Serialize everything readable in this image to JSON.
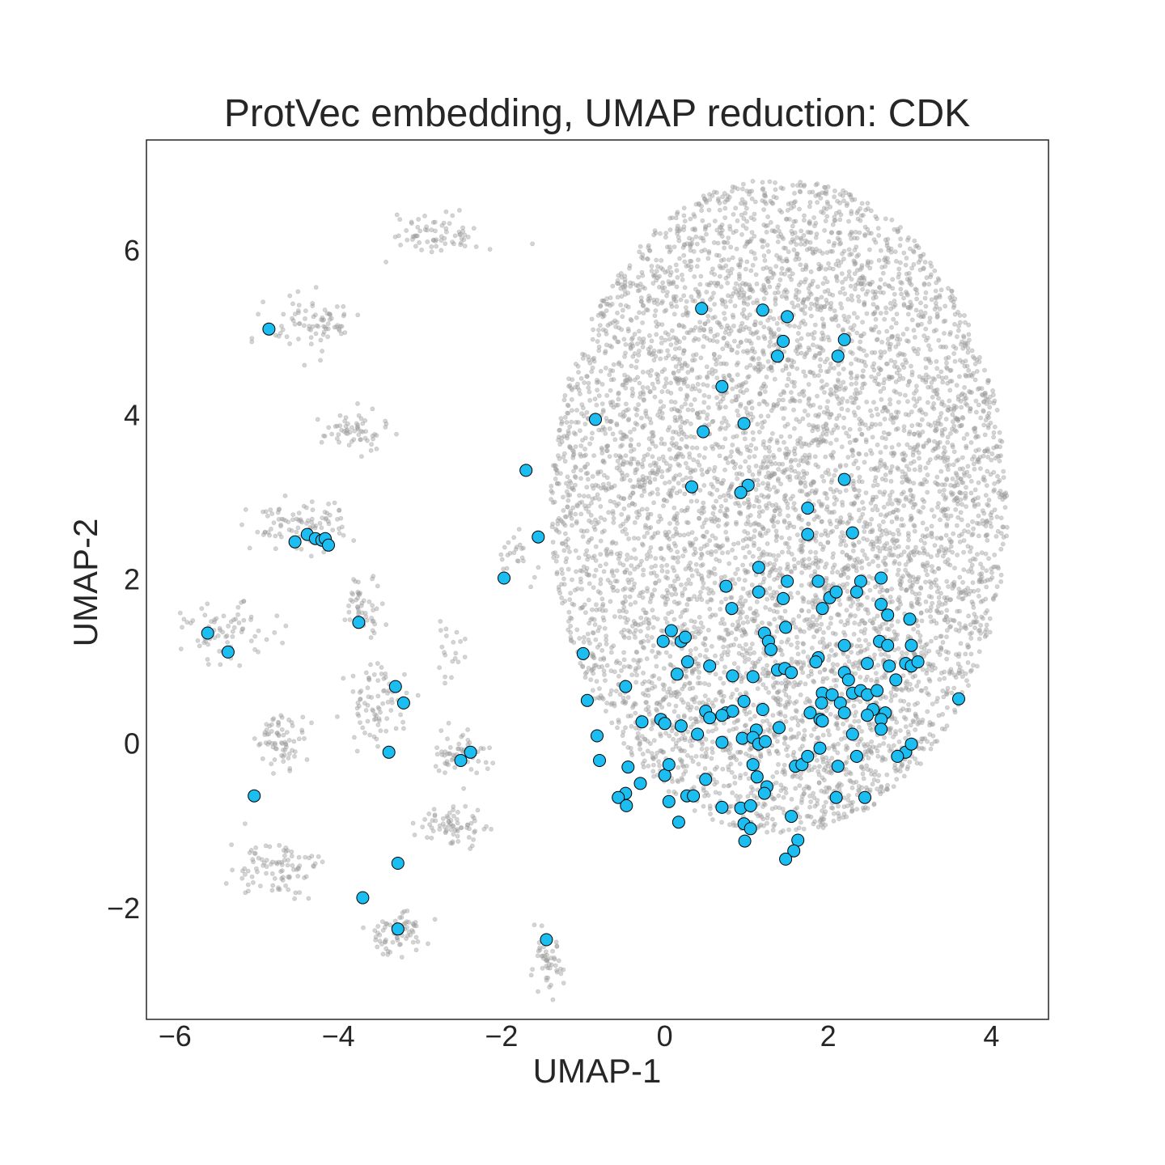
{
  "chart_data": {
    "type": "scatter",
    "title": "ProtVec embedding, UMAP reduction: CDK",
    "xlabel": "UMAP-1",
    "ylabel": "UMAP-2",
    "xlim": [
      -6.35,
      4.7
    ],
    "ylim": [
      -3.35,
      7.35
    ],
    "xticks": [
      -6,
      -4,
      -2,
      0,
      2,
      4
    ],
    "xtick_labels": [
      "−6",
      "−4",
      "−2",
      "0",
      "2",
      "4"
    ],
    "yticks": [
      -2,
      0,
      2,
      4,
      6
    ],
    "ytick_labels": [
      "−2",
      "0",
      "2",
      "4",
      "6"
    ],
    "grid": false,
    "background": {
      "color": "#a0a0a0",
      "description": "dense grey cloud of ~8000 background embeddings (sub-clusters) — positions approximated",
      "clusters": [
        {
          "cx": 1.4,
          "cy": 2.9,
          "rx": 2.8,
          "ry": 4.0,
          "n": 6500
        },
        {
          "cx": -2.8,
          "cy": 6.2,
          "rx": 0.55,
          "ry": 0.25,
          "n": 70
        },
        {
          "cx": -4.3,
          "cy": 5.1,
          "rx": 0.55,
          "ry": 0.35,
          "n": 80
        },
        {
          "cx": -3.8,
          "cy": 3.8,
          "rx": 0.4,
          "ry": 0.25,
          "n": 60
        },
        {
          "cx": -4.5,
          "cy": 2.65,
          "rx": 0.6,
          "ry": 0.3,
          "n": 90
        },
        {
          "cx": -5.35,
          "cy": 1.35,
          "rx": 0.55,
          "ry": 0.35,
          "n": 70
        },
        {
          "cx": -3.7,
          "cy": 1.7,
          "rx": 0.25,
          "ry": 0.35,
          "n": 50
        },
        {
          "cx": -3.5,
          "cy": 0.5,
          "rx": 0.4,
          "ry": 0.5,
          "n": 80
        },
        {
          "cx": -4.7,
          "cy": 0.05,
          "rx": 0.3,
          "ry": 0.3,
          "n": 70
        },
        {
          "cx": -2.5,
          "cy": -0.1,
          "rx": 0.35,
          "ry": 0.3,
          "n": 60
        },
        {
          "cx": -2.6,
          "cy": -1.0,
          "rx": 0.4,
          "ry": 0.25,
          "n": 70
        },
        {
          "cx": -4.8,
          "cy": -1.5,
          "rx": 0.55,
          "ry": 0.35,
          "n": 90
        },
        {
          "cx": -3.3,
          "cy": -2.3,
          "rx": 0.4,
          "ry": 0.25,
          "n": 70
        },
        {
          "cx": -1.45,
          "cy": -2.7,
          "rx": 0.2,
          "ry": 0.35,
          "n": 50
        },
        {
          "cx": -2.65,
          "cy": 1.1,
          "rx": 0.2,
          "ry": 0.3,
          "n": 20
        },
        {
          "cx": -1.8,
          "cy": 2.3,
          "rx": 0.3,
          "ry": 0.3,
          "n": 25
        }
      ]
    },
    "series": [
      {
        "color": "#1cbdf0",
        "edge_color": "#000000",
        "points": [
          [
            -4.85,
            5.05
          ],
          [
            -1.7,
            3.33
          ],
          [
            -1.55,
            2.52
          ],
          [
            -1.97,
            2.02
          ],
          [
            -4.38,
            2.55
          ],
          [
            -4.53,
            2.46
          ],
          [
            -4.28,
            2.5
          ],
          [
            -4.2,
            2.48
          ],
          [
            -4.16,
            2.5
          ],
          [
            -4.12,
            2.42
          ],
          [
            -5.6,
            1.35
          ],
          [
            -5.35,
            1.12
          ],
          [
            -3.75,
            1.48
          ],
          [
            -3.3,
            0.7
          ],
          [
            -3.2,
            0.5
          ],
          [
            -3.38,
            -0.1
          ],
          [
            -2.38,
            -0.1
          ],
          [
            -2.5,
            -0.2
          ],
          [
            -5.03,
            -0.63
          ],
          [
            -3.27,
            -1.45
          ],
          [
            -3.7,
            -1.87
          ],
          [
            -3.27,
            -2.25
          ],
          [
            -1.45,
            -2.38
          ],
          [
            -0.85,
            3.95
          ],
          [
            0.45,
            5.3
          ],
          [
            1.2,
            5.28
          ],
          [
            1.5,
            5.2
          ],
          [
            2.2,
            4.92
          ],
          [
            1.45,
            4.9
          ],
          [
            1.38,
            4.72
          ],
          [
            2.12,
            4.72
          ],
          [
            0.7,
            4.35
          ],
          [
            0.97,
            3.9
          ],
          [
            0.47,
            3.8
          ],
          [
            1.02,
            3.15
          ],
          [
            0.33,
            3.13
          ],
          [
            0.93,
            3.06
          ],
          [
            2.2,
            3.22
          ],
          [
            1.75,
            2.87
          ],
          [
            2.3,
            2.57
          ],
          [
            1.75,
            2.55
          ],
          [
            1.15,
            2.15
          ],
          [
            0.75,
            1.92
          ],
          [
            1.15,
            1.85
          ],
          [
            1.5,
            1.98
          ],
          [
            1.88,
            1.98
          ],
          [
            2.4,
            1.98
          ],
          [
            2.65,
            2.02
          ],
          [
            0.82,
            1.65
          ],
          [
            1.45,
            1.77
          ],
          [
            1.93,
            1.65
          ],
          [
            2.02,
            1.78
          ],
          [
            2.1,
            1.85
          ],
          [
            2.35,
            1.85
          ],
          [
            2.65,
            1.7
          ],
          [
            2.73,
            1.57
          ],
          [
            3.0,
            1.52
          ],
          [
            0.08,
            1.38
          ],
          [
            0.2,
            1.25
          ],
          [
            0.25,
            1.3
          ],
          [
            1.22,
            1.35
          ],
          [
            1.48,
            1.42
          ],
          [
            1.27,
            1.25
          ],
          [
            1.3,
            1.15
          ],
          [
            -0.02,
            1.25
          ],
          [
            -1.0,
            1.1
          ],
          [
            2.2,
            1.2
          ],
          [
            2.63,
            1.25
          ],
          [
            2.73,
            1.2
          ],
          [
            3.02,
            1.2
          ],
          [
            1.88,
            1.05
          ],
          [
            1.85,
            1.0
          ],
          [
            0.28,
            1.0
          ],
          [
            0.55,
            0.95
          ],
          [
            0.15,
            0.85
          ],
          [
            0.83,
            0.83
          ],
          [
            1.08,
            0.82
          ],
          [
            1.38,
            0.9
          ],
          [
            1.47,
            0.92
          ],
          [
            1.55,
            0.87
          ],
          [
            2.2,
            0.87
          ],
          [
            2.48,
            0.98
          ],
          [
            2.75,
            0.95
          ],
          [
            2.95,
            0.98
          ],
          [
            3.02,
            0.95
          ],
          [
            3.1,
            1.0
          ],
          [
            2.25,
            0.78
          ],
          [
            2.83,
            0.78
          ],
          [
            -0.48,
            0.7
          ],
          [
            -0.95,
            0.53
          ],
          [
            0.97,
            0.52
          ],
          [
            1.2,
            0.42
          ],
          [
            1.93,
            0.62
          ],
          [
            2.05,
            0.6
          ],
          [
            2.3,
            0.62
          ],
          [
            2.4,
            0.65
          ],
          [
            2.48,
            0.6
          ],
          [
            2.6,
            0.65
          ],
          [
            2.15,
            0.5
          ],
          [
            1.92,
            0.5
          ],
          [
            3.6,
            0.55
          ],
          [
            0.75,
            0.38
          ],
          [
            0.83,
            0.4
          ],
          [
            0.5,
            0.4
          ],
          [
            0.55,
            0.32
          ],
          [
            0.7,
            0.35
          ],
          [
            1.78,
            0.38
          ],
          [
            1.9,
            0.3
          ],
          [
            1.93,
            0.28
          ],
          [
            2.2,
            0.38
          ],
          [
            2.55,
            0.42
          ],
          [
            2.48,
            0.35
          ],
          [
            2.7,
            0.38
          ],
          [
            2.65,
            0.3
          ],
          [
            -0.28,
            0.27
          ],
          [
            -0.05,
            0.3
          ],
          [
            0.0,
            0.25
          ],
          [
            0.2,
            0.22
          ],
          [
            0.4,
            0.12
          ],
          [
            1.12,
            0.17
          ],
          [
            1.4,
            0.2
          ],
          [
            2.65,
            0.18
          ],
          [
            2.3,
            0.12
          ],
          [
            -0.83,
            0.1
          ],
          [
            0.7,
            0.02
          ],
          [
            0.95,
            0.07
          ],
          [
            1.08,
            0.08
          ],
          [
            1.15,
            0.0
          ],
          [
            1.23,
            0.03
          ],
          [
            1.9,
            -0.05
          ],
          [
            2.95,
            -0.1
          ],
          [
            3.02,
            0.0
          ],
          [
            -0.8,
            -0.2
          ],
          [
            -0.45,
            -0.28
          ],
          [
            0.0,
            -0.38
          ],
          [
            0.05,
            -0.25
          ],
          [
            1.08,
            -0.25
          ],
          [
            1.13,
            -0.4
          ],
          [
            1.6,
            -0.27
          ],
          [
            1.68,
            -0.25
          ],
          [
            1.75,
            -0.15
          ],
          [
            2.12,
            -0.27
          ],
          [
            2.35,
            -0.15
          ],
          [
            2.85,
            -0.15
          ],
          [
            -0.3,
            -0.48
          ],
          [
            0.5,
            -0.43
          ],
          [
            1.25,
            -0.52
          ],
          [
            1.22,
            -0.6
          ],
          [
            -0.48,
            -0.6
          ],
          [
            -0.57,
            -0.65
          ],
          [
            -0.47,
            -0.75
          ],
          [
            0.27,
            -0.63
          ],
          [
            0.35,
            -0.63
          ],
          [
            0.05,
            -0.7
          ],
          [
            0.7,
            -0.77
          ],
          [
            0.93,
            -0.78
          ],
          [
            1.05,
            -0.75
          ],
          [
            2.1,
            -0.65
          ],
          [
            2.45,
            -0.65
          ],
          [
            0.17,
            -0.95
          ],
          [
            0.97,
            -0.97
          ],
          [
            1.05,
            -1.03
          ],
          [
            1.55,
            -0.88
          ],
          [
            0.98,
            -1.18
          ],
          [
            1.63,
            -1.17
          ],
          [
            1.58,
            -1.3
          ],
          [
            1.48,
            -1.4
          ]
        ]
      }
    ]
  }
}
